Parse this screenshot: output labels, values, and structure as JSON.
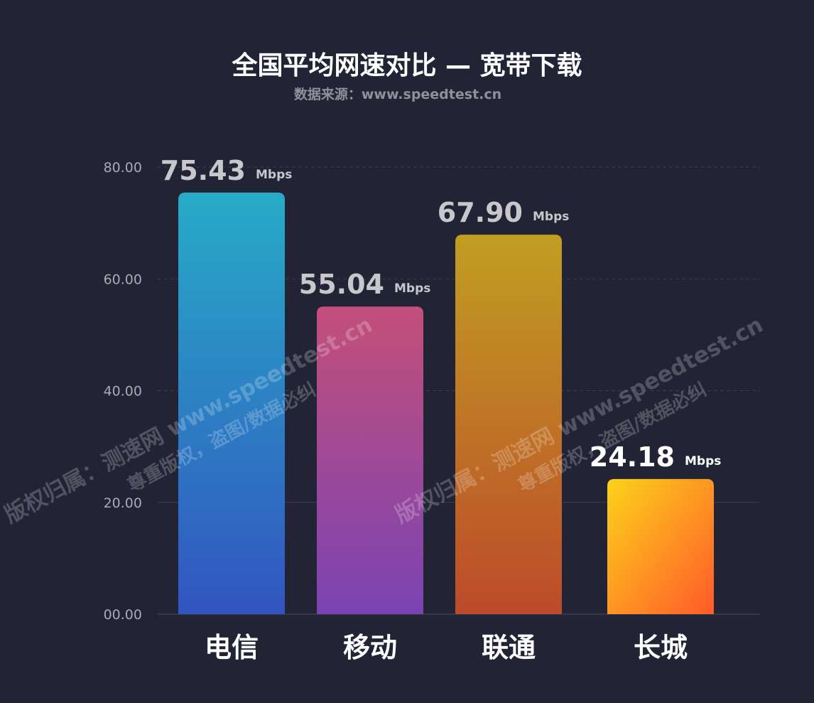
{
  "chart_data": {
    "type": "bar",
    "title": "全国平均网速对比 — 宽带下载",
    "subtitle": "数据来源：www.speedtest.cn",
    "categories": [
      "电信",
      "移动",
      "联通",
      "长城"
    ],
    "values": [
      75.43,
      55.04,
      67.9,
      24.18
    ],
    "value_labels": [
      "75.43",
      "55.04",
      "67.90",
      "24.18"
    ],
    "unit": "Mbps",
    "yticks": [
      "00.00",
      "20.00",
      "40.00",
      "60.00",
      "80.00"
    ],
    "ytick_values": [
      0,
      20,
      40,
      60,
      80
    ],
    "ylim": [
      0,
      80
    ],
    "grid": true,
    "watermark": [
      "版权归属：测速网 www.speedtest.cn",
      "尊重版权，盗图/数据必纠"
    ],
    "colors": {
      "background": "#222334",
      "bars": [
        [
          "#27abc7",
          "#3255c0"
        ],
        [
          "#c44f7a",
          "#7a43b3"
        ],
        [
          "#c19e22",
          "#bd4a2a"
        ],
        [
          "#fcd31a",
          "#ff5a2a"
        ]
      ],
      "value_label": "#c7c7cc",
      "value_label_last": "#ffffff"
    }
  }
}
